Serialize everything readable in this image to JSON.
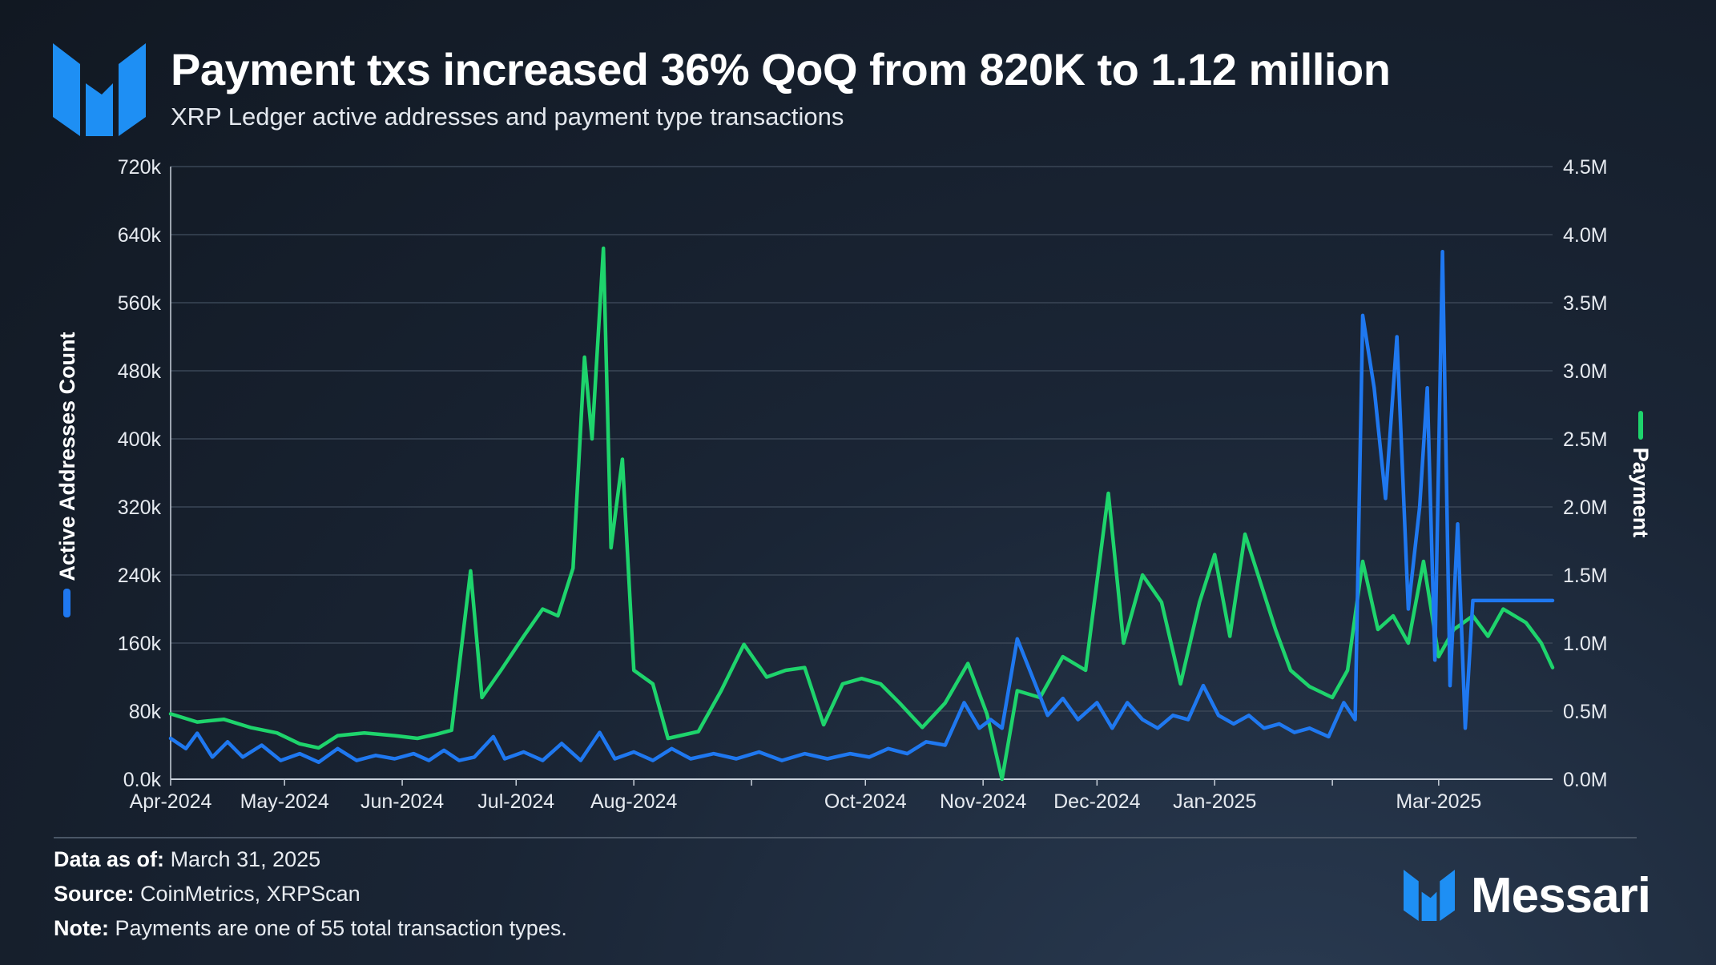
{
  "header": {
    "title": "Payment txs increased 36% QoQ from 820K to 1.12 million",
    "subtitle": "XRP Ledger active addresses and payment type transactions"
  },
  "footer": {
    "data_label": "Data as of:",
    "data_value": "March 31, 2025",
    "source_label": "Source:",
    "source_value": "CoinMetrics, XRPScan",
    "note_label": "Note:",
    "note_value": "Payments are one of 55 total transaction types."
  },
  "brand": {
    "name": "Messari"
  },
  "colors": {
    "active": "#1f78f0",
    "payment": "#1ed46c",
    "grid": "#3a4656",
    "axis_text": "#e6eaf0"
  },
  "chart_data": {
    "type": "line",
    "title": "Payment txs increased 36% QoQ from 820K to 1.12 million",
    "subtitle": "XRP Ledger active addresses and payment type transactions",
    "x_tick_labels": [
      "Apr-2024",
      "May-2024",
      "Jun-2024",
      "Jul-2024",
      "Aug-2024",
      "Oct-2024",
      "Nov-2024",
      "Dec-2024",
      "Jan-2025",
      "Mar-2025"
    ],
    "x_tick_dates": [
      "2024-04-01",
      "2024-05-01",
      "2024-06-01",
      "2024-07-01",
      "2024-08-01",
      "2024-09-01",
      "2024-10-01",
      "2024-11-01",
      "2024-12-01",
      "2025-01-01",
      "2025-02-01",
      "2025-03-01"
    ],
    "x_tick_label_indices": [
      0,
      1,
      2,
      3,
      4,
      6,
      7,
      8,
      9,
      11
    ],
    "x_range": [
      "2024-04-01",
      "2025-03-31"
    ],
    "y_left": {
      "label": "Active Addresses Count",
      "ticks": [
        "0.0k",
        "80k",
        "160k",
        "240k",
        "320k",
        "400k",
        "480k",
        "560k",
        "640k",
        "720k"
      ],
      "range": [
        0,
        720000
      ]
    },
    "y_right": {
      "label": "Payment",
      "ticks": [
        "0.0M",
        "0.5M",
        "1.0M",
        "1.5M",
        "2.0M",
        "2.5M",
        "3.0M",
        "3.5M",
        "4.0M",
        "4.5M"
      ],
      "range": [
        0,
        4500000
      ]
    },
    "grid": true,
    "series": [
      {
        "name": "Active Addresses Count",
        "axis": "left",
        "color": "#1f78f0",
        "points": [
          [
            "2024-04-01",
            48000
          ],
          [
            "2024-04-05",
            36000
          ],
          [
            "2024-04-08",
            54000
          ],
          [
            "2024-04-12",
            26000
          ],
          [
            "2024-04-16",
            44000
          ],
          [
            "2024-04-20",
            26000
          ],
          [
            "2024-04-25",
            40000
          ],
          [
            "2024-04-30",
            22000
          ],
          [
            "2024-05-05",
            30000
          ],
          [
            "2024-05-10",
            20000
          ],
          [
            "2024-05-15",
            36000
          ],
          [
            "2024-05-20",
            22000
          ],
          [
            "2024-05-25",
            28000
          ],
          [
            "2024-05-30",
            24000
          ],
          [
            "2024-06-04",
            30000
          ],
          [
            "2024-06-08",
            22000
          ],
          [
            "2024-06-12",
            34000
          ],
          [
            "2024-06-16",
            22000
          ],
          [
            "2024-06-20",
            26000
          ],
          [
            "2024-06-25",
            50000
          ],
          [
            "2024-06-28",
            24000
          ],
          [
            "2024-07-03",
            32000
          ],
          [
            "2024-07-08",
            22000
          ],
          [
            "2024-07-13",
            42000
          ],
          [
            "2024-07-18",
            22000
          ],
          [
            "2024-07-23",
            55000
          ],
          [
            "2024-07-27",
            24000
          ],
          [
            "2024-08-01",
            32000
          ],
          [
            "2024-08-06",
            22000
          ],
          [
            "2024-08-11",
            36000
          ],
          [
            "2024-08-16",
            24000
          ],
          [
            "2024-08-22",
            30000
          ],
          [
            "2024-08-28",
            24000
          ],
          [
            "2024-09-03",
            32000
          ],
          [
            "2024-09-09",
            22000
          ],
          [
            "2024-09-15",
            30000
          ],
          [
            "2024-09-21",
            24000
          ],
          [
            "2024-09-27",
            30000
          ],
          [
            "2024-10-02",
            26000
          ],
          [
            "2024-10-07",
            36000
          ],
          [
            "2024-10-12",
            30000
          ],
          [
            "2024-10-17",
            44000
          ],
          [
            "2024-10-22",
            40000
          ],
          [
            "2024-10-27",
            90000
          ],
          [
            "2024-10-31",
            60000
          ],
          [
            "2024-11-03",
            70000
          ],
          [
            "2024-11-06",
            60000
          ],
          [
            "2024-11-10",
            165000
          ],
          [
            "2024-11-14",
            120000
          ],
          [
            "2024-11-18",
            75000
          ],
          [
            "2024-11-22",
            95000
          ],
          [
            "2024-11-26",
            70000
          ],
          [
            "2024-12-01",
            90000
          ],
          [
            "2024-12-05",
            60000
          ],
          [
            "2024-12-09",
            90000
          ],
          [
            "2024-12-13",
            70000
          ],
          [
            "2024-12-17",
            60000
          ],
          [
            "2024-12-21",
            75000
          ],
          [
            "2024-12-25",
            70000
          ],
          [
            "2024-12-29",
            110000
          ],
          [
            "2025-01-02",
            75000
          ],
          [
            "2025-01-06",
            65000
          ],
          [
            "2025-01-10",
            75000
          ],
          [
            "2025-01-14",
            60000
          ],
          [
            "2025-01-18",
            65000
          ],
          [
            "2025-01-22",
            55000
          ],
          [
            "2025-01-26",
            60000
          ],
          [
            "2025-01-31",
            50000
          ],
          [
            "2025-02-04",
            90000
          ],
          [
            "2025-02-07",
            70000
          ],
          [
            "2025-02-09",
            545000
          ],
          [
            "2025-02-12",
            460000
          ],
          [
            "2025-02-15",
            330000
          ],
          [
            "2025-02-18",
            520000
          ],
          [
            "2025-02-21",
            200000
          ],
          [
            "2025-02-24",
            320000
          ],
          [
            "2025-02-26",
            460000
          ],
          [
            "2025-02-28",
            140000
          ],
          [
            "2025-03-02",
            620000
          ],
          [
            "2025-03-04",
            110000
          ],
          [
            "2025-03-06",
            300000
          ],
          [
            "2025-03-08",
            60000
          ],
          [
            "2025-03-10",
            210000
          ],
          [
            "2025-03-31",
            210000
          ]
        ]
      },
      {
        "name": "Payment",
        "axis": "right",
        "color": "#1ed46c",
        "points": [
          [
            "2024-04-01",
            480000
          ],
          [
            "2024-04-08",
            420000
          ],
          [
            "2024-04-15",
            440000
          ],
          [
            "2024-04-22",
            380000
          ],
          [
            "2024-04-29",
            340000
          ],
          [
            "2024-05-05",
            260000
          ],
          [
            "2024-05-10",
            230000
          ],
          [
            "2024-05-15",
            320000
          ],
          [
            "2024-05-22",
            340000
          ],
          [
            "2024-05-30",
            320000
          ],
          [
            "2024-06-05",
            300000
          ],
          [
            "2024-06-10",
            330000
          ],
          [
            "2024-06-14",
            360000
          ],
          [
            "2024-06-19",
            1530000
          ],
          [
            "2024-06-22",
            600000
          ],
          [
            "2024-06-27",
            800000
          ],
          [
            "2024-07-03",
            1050000
          ],
          [
            "2024-07-08",
            1250000
          ],
          [
            "2024-07-12",
            1200000
          ],
          [
            "2024-07-16",
            1550000
          ],
          [
            "2024-07-19",
            3100000
          ],
          [
            "2024-07-21",
            2500000
          ],
          [
            "2024-07-24",
            3900000
          ],
          [
            "2024-07-26",
            1700000
          ],
          [
            "2024-07-29",
            2350000
          ],
          [
            "2024-08-01",
            800000
          ],
          [
            "2024-08-06",
            700000
          ],
          [
            "2024-08-10",
            300000
          ],
          [
            "2024-08-18",
            350000
          ],
          [
            "2024-08-24",
            650000
          ],
          [
            "2024-08-30",
            990000
          ],
          [
            "2024-09-05",
            750000
          ],
          [
            "2024-09-10",
            800000
          ],
          [
            "2024-09-15",
            820000
          ],
          [
            "2024-09-20",
            400000
          ],
          [
            "2024-09-25",
            700000
          ],
          [
            "2024-09-30",
            740000
          ],
          [
            "2024-10-05",
            700000
          ],
          [
            "2024-10-10",
            560000
          ],
          [
            "2024-10-16",
            380000
          ],
          [
            "2024-10-22",
            560000
          ],
          [
            "2024-10-28",
            850000
          ],
          [
            "2024-11-02",
            480000
          ],
          [
            "2024-11-06",
            0
          ],
          [
            "2024-11-10",
            650000
          ],
          [
            "2024-11-16",
            600000
          ],
          [
            "2024-11-22",
            900000
          ],
          [
            "2024-11-28",
            800000
          ],
          [
            "2024-12-04",
            2100000
          ],
          [
            "2024-12-08",
            1000000
          ],
          [
            "2024-12-13",
            1500000
          ],
          [
            "2024-12-18",
            1300000
          ],
          [
            "2024-12-23",
            700000
          ],
          [
            "2024-12-28",
            1300000
          ],
          [
            "2025-01-01",
            1650000
          ],
          [
            "2025-01-05",
            1050000
          ],
          [
            "2025-01-09",
            1800000
          ],
          [
            "2025-01-13",
            1450000
          ],
          [
            "2025-01-17",
            1100000
          ],
          [
            "2025-01-21",
            800000
          ],
          [
            "2025-01-26",
            680000
          ],
          [
            "2025-02-01",
            600000
          ],
          [
            "2025-02-05",
            800000
          ],
          [
            "2025-02-09",
            1600000
          ],
          [
            "2025-02-13",
            1100000
          ],
          [
            "2025-02-17",
            1200000
          ],
          [
            "2025-02-21",
            1000000
          ],
          [
            "2025-02-25",
            1600000
          ],
          [
            "2025-03-01",
            900000
          ],
          [
            "2025-03-05",
            1100000
          ],
          [
            "2025-03-10",
            1200000
          ],
          [
            "2025-03-14",
            1050000
          ],
          [
            "2025-03-18",
            1250000
          ],
          [
            "2025-03-24",
            1150000
          ],
          [
            "2025-03-28",
            1000000
          ],
          [
            "2025-03-31",
            820000
          ]
        ]
      }
    ]
  }
}
